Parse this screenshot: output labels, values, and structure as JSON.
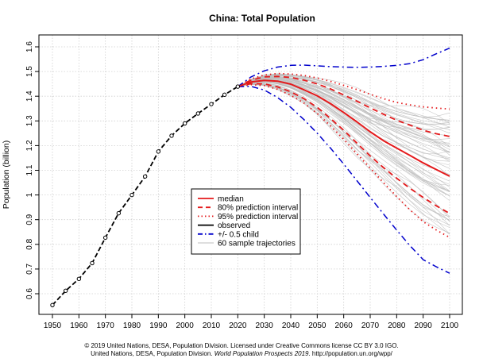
{
  "chart_data": {
    "type": "line",
    "title": "China: Total Population",
    "xlabel": "",
    "ylabel": "Population (billion)",
    "xlim": [
      1950,
      2100
    ],
    "ylim": [
      0.55,
      1.62
    ],
    "xticks": [
      1950,
      1960,
      1970,
      1980,
      1990,
      2000,
      2010,
      2020,
      2030,
      2040,
      2050,
      2060,
      2070,
      2080,
      2090,
      2100
    ],
    "yticks": [
      0.6,
      0.7,
      0.8,
      0.9,
      1.0,
      1.1,
      1.2,
      1.3,
      1.4,
      1.5,
      1.6
    ],
    "ytick_labels": [
      "0.6",
      "0.7",
      "0.8",
      "0.9",
      "1",
      "1.1",
      "1.2",
      "1.3",
      "1.4",
      "1.5",
      "1.6"
    ],
    "grid": true,
    "legend_position": "center-left",
    "legend": [
      {
        "label": "median",
        "color": "#e41a1c",
        "style": "solid"
      },
      {
        "label": "80% prediction interval",
        "color": "#e41a1c",
        "style": "dashed"
      },
      {
        "label": "95% prediction interval",
        "color": "#e41a1c",
        "style": "dotted"
      },
      {
        "label": "observed",
        "color": "#000000",
        "style": "solid"
      },
      {
        "label": "+/- 0.5 child",
        "color": "#0000cc",
        "style": "dashdot"
      },
      {
        "label": "60 sample trajectories",
        "color": "#bdbdbd",
        "style": "solid"
      }
    ],
    "observed": {
      "x": [
        1950,
        1955,
        1960,
        1965,
        1970,
        1975,
        1980,
        1985,
        1990,
        1995,
        2000,
        2005,
        2010,
        2015,
        2020
      ],
      "y": [
        0.554,
        0.612,
        0.66,
        0.724,
        0.827,
        0.926,
        1.0,
        1.075,
        1.176,
        1.24,
        1.29,
        1.33,
        1.368,
        1.406,
        1.439
      ]
    },
    "series": [
      {
        "role": "median",
        "x": [
          2020,
          2025,
          2030,
          2035,
          2040,
          2045,
          2050,
          2055,
          2060,
          2065,
          2070,
          2075,
          2080,
          2085,
          2090,
          2095,
          2100
        ],
        "y": [
          1.439,
          1.458,
          1.464,
          1.461,
          1.449,
          1.426,
          1.402,
          1.37,
          1.334,
          1.296,
          1.256,
          1.22,
          1.19,
          1.16,
          1.13,
          1.103,
          1.076
        ]
      },
      {
        "role": "pi80_upper",
        "x": [
          2020,
          2025,
          2030,
          2035,
          2040,
          2045,
          2050,
          2055,
          2060,
          2065,
          2070,
          2075,
          2080,
          2085,
          2090,
          2095,
          2100
        ],
        "y": [
          1.439,
          1.465,
          1.478,
          1.48,
          1.476,
          1.465,
          1.45,
          1.43,
          1.405,
          1.38,
          1.353,
          1.327,
          1.303,
          1.283,
          1.262,
          1.248,
          1.237
        ]
      },
      {
        "role": "pi80_lower",
        "x": [
          2020,
          2025,
          2030,
          2035,
          2040,
          2045,
          2050,
          2055,
          2060,
          2065,
          2070,
          2075,
          2080,
          2085,
          2090,
          2095,
          2100
        ],
        "y": [
          1.439,
          1.451,
          1.45,
          1.438,
          1.418,
          1.39,
          1.355,
          1.31,
          1.262,
          1.21,
          1.158,
          1.111,
          1.068,
          1.027,
          0.99,
          0.956,
          0.925
        ]
      },
      {
        "role": "pi95_upper",
        "x": [
          2020,
          2025,
          2030,
          2035,
          2040,
          2045,
          2050,
          2055,
          2060,
          2065,
          2070,
          2075,
          2080,
          2085,
          2090,
          2095,
          2100
        ],
        "y": [
          1.439,
          1.47,
          1.486,
          1.492,
          1.49,
          1.484,
          1.474,
          1.46,
          1.444,
          1.427,
          1.408,
          1.39,
          1.375,
          1.365,
          1.357,
          1.352,
          1.348
        ]
      },
      {
        "role": "pi95_lower",
        "x": [
          2020,
          2025,
          2030,
          2035,
          2040,
          2045,
          2050,
          2055,
          2060,
          2065,
          2070,
          2075,
          2080,
          2085,
          2090,
          2095,
          2100
        ],
        "y": [
          1.439,
          1.447,
          1.443,
          1.428,
          1.404,
          1.372,
          1.33,
          1.28,
          1.226,
          1.167,
          1.109,
          1.05,
          0.994,
          0.94,
          0.892,
          0.858,
          0.828
        ]
      },
      {
        "role": "plus_half_child",
        "x": [
          2020,
          2025,
          2030,
          2035,
          2040,
          2045,
          2050,
          2055,
          2060,
          2065,
          2070,
          2075,
          2080,
          2085,
          2090,
          2095,
          2100
        ],
        "y": [
          1.439,
          1.478,
          1.503,
          1.518,
          1.525,
          1.526,
          1.523,
          1.52,
          1.518,
          1.517,
          1.518,
          1.521,
          1.525,
          1.532,
          1.548,
          1.572,
          1.595
        ]
      },
      {
        "role": "minus_half_child",
        "x": [
          2020,
          2025,
          2030,
          2035,
          2040,
          2045,
          2050,
          2055,
          2060,
          2065,
          2070,
          2075,
          2080,
          2085,
          2090,
          2095,
          2100
        ],
        "y": [
          1.439,
          1.44,
          1.425,
          1.395,
          1.355,
          1.305,
          1.25,
          1.19,
          1.125,
          1.058,
          0.99,
          0.923,
          0.858,
          0.795,
          0.738,
          0.709,
          0.683
        ]
      }
    ],
    "sample_trajectories_count": 60
  },
  "credits": {
    "line1": "© 2019 United Nations, DESA, Population Division. Licensed under Creative Commons license CC BY 3.0 IGO.",
    "line2_prefix": "United Nations, DESA, Population Division. ",
    "line2_italic": "World Population Prospects 2019",
    "line2_suffix": ". http://population.un.org/wpp/"
  }
}
